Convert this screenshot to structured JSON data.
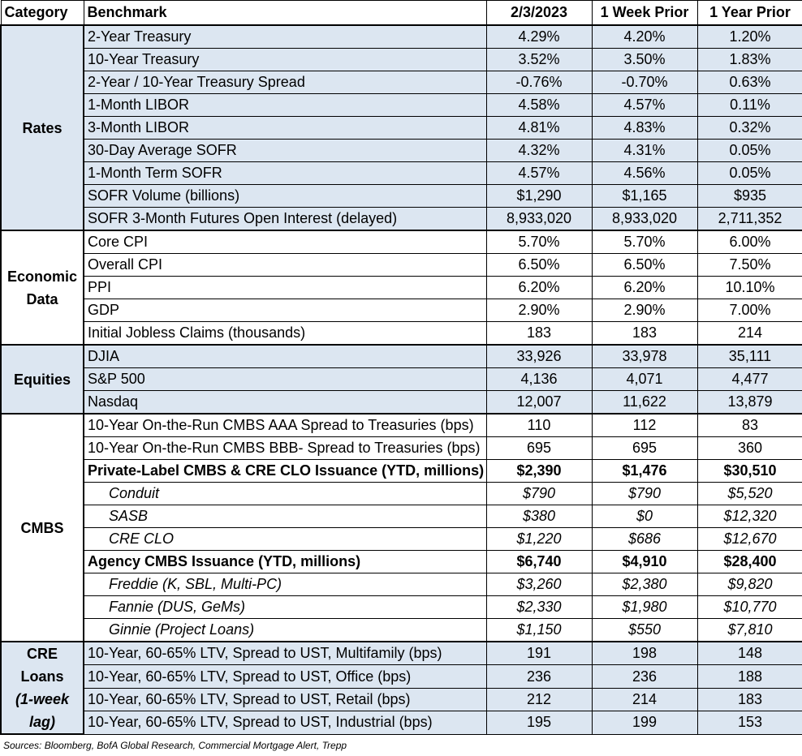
{
  "header": [
    "Category",
    "Benchmark",
    "2/3/2023",
    "1 Week Prior",
    "1 Year Prior"
  ],
  "groups": [
    {
      "category": "Rates",
      "shaded": true,
      "rows": [
        {
          "benchmark": "2-Year Treasury",
          "values": [
            "4.29%",
            "4.20%",
            "1.20%"
          ]
        },
        {
          "benchmark": "10-Year Treasury",
          "values": [
            "3.52%",
            "3.50%",
            "1.83%"
          ]
        },
        {
          "benchmark": "2-Year / 10-Year Treasury Spread",
          "values": [
            "-0.76%",
            "-0.70%",
            "0.63%"
          ]
        },
        {
          "benchmark": "1-Month LIBOR",
          "values": [
            "4.58%",
            "4.57%",
            "0.11%"
          ]
        },
        {
          "benchmark": "3-Month LIBOR",
          "values": [
            "4.81%",
            "4.83%",
            "0.32%"
          ]
        },
        {
          "benchmark": "30-Day Average SOFR",
          "values": [
            "4.32%",
            "4.31%",
            "0.05%"
          ]
        },
        {
          "benchmark": "1-Month Term SOFR",
          "values": [
            "4.57%",
            "4.56%",
            "0.05%"
          ]
        },
        {
          "benchmark": "SOFR Volume (billions)",
          "values": [
            "$1,290",
            "$1,165",
            "$935"
          ]
        },
        {
          "benchmark": "SOFR 3-Month Futures Open Interest (delayed)",
          "values": [
            "8,933,020",
            "8,933,020",
            "2,711,352"
          ]
        }
      ]
    },
    {
      "category": "Economic Data",
      "shaded": false,
      "rows": [
        {
          "benchmark": "Core CPI",
          "values": [
            "5.70%",
            "5.70%",
            "6.00%"
          ]
        },
        {
          "benchmark": "Overall CPI",
          "values": [
            "6.50%",
            "6.50%",
            "7.50%"
          ]
        },
        {
          "benchmark": "PPI",
          "values": [
            "6.20%",
            "6.20%",
            "10.10%"
          ]
        },
        {
          "benchmark": "GDP",
          "values": [
            "2.90%",
            "2.90%",
            "7.00%"
          ]
        },
        {
          "benchmark": "Initial Jobless Claims (thousands)",
          "values": [
            "183",
            "183",
            "214"
          ]
        }
      ]
    },
    {
      "category": "Equities",
      "shaded": true,
      "rows": [
        {
          "benchmark": "DJIA",
          "values": [
            "33,926",
            "33,978",
            "35,111"
          ]
        },
        {
          "benchmark": "S&P 500",
          "values": [
            "4,136",
            "4,071",
            "4,477"
          ]
        },
        {
          "benchmark": "Nasdaq",
          "values": [
            "12,007",
            "11,622",
            "13,879"
          ]
        }
      ]
    },
    {
      "category": "CMBS",
      "shaded": false,
      "rows": [
        {
          "benchmark": "10-Year On-the-Run CMBS AAA Spread to Treasuries (bps)",
          "values": [
            "110",
            "112",
            "83"
          ]
        },
        {
          "benchmark": "10-Year On-the-Run CMBS BBB- Spread to Treasuries (bps)",
          "values": [
            "695",
            "695",
            "360"
          ]
        },
        {
          "benchmark": "Private-Label CMBS & CRE CLO Issuance (YTD, millions)",
          "values": [
            "$2,390",
            "$1,476",
            "$30,510"
          ],
          "style": "bold"
        },
        {
          "benchmark": "Conduit",
          "values": [
            "$790",
            "$790",
            "$5,520"
          ],
          "style": "italic"
        },
        {
          "benchmark": "SASB",
          "values": [
            "$380",
            "$0",
            "$12,320"
          ],
          "style": "italic"
        },
        {
          "benchmark": "CRE CLO",
          "values": [
            "$1,220",
            "$686",
            "$12,670"
          ],
          "style": "italic"
        },
        {
          "benchmark": "Agency CMBS Issuance (YTD, millions)",
          "values": [
            "$6,740",
            "$4,910",
            "$28,400"
          ],
          "style": "bold"
        },
        {
          "benchmark": "Freddie (K, SBL, Multi-PC)",
          "values": [
            "$3,260",
            "$2,380",
            "$9,820"
          ],
          "style": "italic"
        },
        {
          "benchmark": "Fannie (DUS, GeMs)",
          "values": [
            "$2,330",
            "$1,980",
            "$10,770"
          ],
          "style": "italic"
        },
        {
          "benchmark": "Ginnie (Project Loans)",
          "values": [
            "$1,150",
            "$550",
            "$7,810"
          ],
          "style": "italic"
        }
      ]
    },
    {
      "category": "CRE Loans",
      "category_note": "(1-week lag)",
      "shaded": true,
      "rows": [
        {
          "benchmark": "10-Year, 60-65% LTV, Spread to UST, Multifamily (bps)",
          "values": [
            "191",
            "198",
            "148"
          ]
        },
        {
          "benchmark": "10-Year, 60-65% LTV, Spread to UST, Office (bps)",
          "values": [
            "236",
            "236",
            "188"
          ]
        },
        {
          "benchmark": "10-Year, 60-65% LTV, Spread to UST, Retail (bps)",
          "values": [
            "212",
            "214",
            "183"
          ]
        },
        {
          "benchmark": "10-Year, 60-65% LTV, Spread to UST, Industrial (bps)",
          "values": [
            "195",
            "199",
            "153"
          ]
        }
      ]
    }
  ],
  "footer": "Sources: Bloomberg, BofA Global Research, Commercial Mortgage Alert, Trepp"
}
